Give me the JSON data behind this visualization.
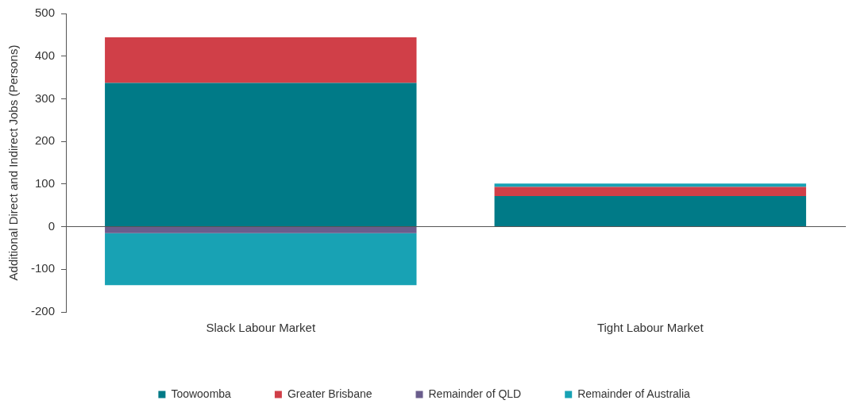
{
  "chart_data": {
    "type": "bar",
    "stacked": true,
    "ylabel": "Additional Direct and Indirect Jobs (Persons)",
    "categories": [
      "Slack Labour Market",
      "Tight Labour Market"
    ],
    "series": [
      {
        "name": "Toowoomba",
        "color": "#007a87",
        "values": [
          337,
          72
        ]
      },
      {
        "name": "Greater Brisbane",
        "color": "#d03f48",
        "values": [
          107,
          21
        ]
      },
      {
        "name": "Remainder of QLD",
        "color": "#6a5d8c",
        "values": [
          -15,
          0
        ]
      },
      {
        "name": "Remainder of Australia",
        "color": "#18a2b4",
        "values": [
          -122,
          8
        ]
      }
    ],
    "ylim": [
      -200,
      500
    ],
    "yticks": [
      -200,
      -100,
      0,
      100,
      200,
      300,
      400,
      500
    ],
    "legend": "bottom"
  }
}
